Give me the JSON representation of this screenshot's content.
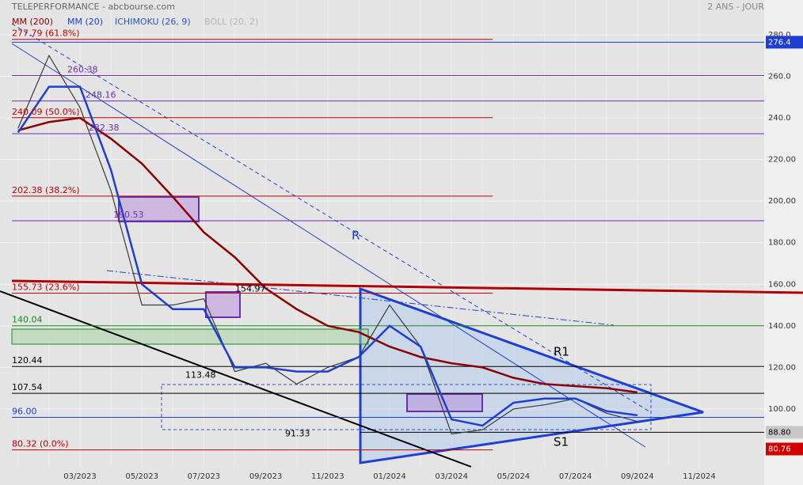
{
  "chart_data": {
    "type": "line",
    "title": "TELEPERFORMANCE - abcbourse.com",
    "subtitle": "2 ANS - JOUR",
    "categories": [
      null,
      null,
      "03/2023",
      null,
      "05/2023",
      null,
      "07/2023",
      null,
      "09/2023",
      null,
      "11/2023",
      null,
      "01/2024",
      null,
      "03/2024",
      null,
      "05/2024",
      null,
      "07/2024",
      null,
      "09/2024",
      null,
      "11/2024"
    ],
    "close": [
      235,
      270,
      245,
      205,
      150,
      150,
      153,
      118,
      122,
      112,
      120,
      125,
      150,
      130,
      88,
      90,
      100,
      102,
      105,
      98,
      94,
      null,
      null
    ],
    "series": [
      {
        "name": "MM (200)",
        "color": "#8b0000",
        "values": [
          234,
          238,
          240,
          230,
          218,
          202,
          185,
          173,
          158,
          148,
          140,
          137,
          130,
          125,
          122,
          120,
          115,
          112,
          111,
          110,
          108,
          null,
          null
        ]
      },
      {
        "name": "MM (20)",
        "color": "#1f3fd1",
        "values": [
          233,
          255,
          255,
          215,
          160,
          148,
          148,
          120,
          120,
          118,
          118,
          125,
          140,
          130,
          95,
          92,
          103,
          105,
          105,
          99,
          97,
          null,
          null
        ]
      }
    ],
    "indicators": [
      {
        "name": "ICHIMOKU (26, 9)",
        "color": "#2b55b8"
      },
      {
        "name": "BOLL (20, 2)",
        "color": "#b4b4b4"
      }
    ],
    "ylim": [
      72.2,
      296.7
    ],
    "yticks": [
      {
        "value": 100,
        "label": "100.00"
      },
      {
        "value": 120,
        "label": "120.00"
      },
      {
        "value": 140,
        "label": "140.00"
      },
      {
        "value": 160,
        "label": "160.00"
      },
      {
        "value": 180,
        "label": "180.00"
      },
      {
        "value": 200,
        "label": "200.00"
      },
      {
        "value": 220,
        "label": "220.00"
      },
      {
        "value": 240,
        "label": "240.0"
      },
      {
        "value": 260,
        "label": "260.0"
      },
      {
        "value": 280,
        "label": "280.0"
      }
    ],
    "levels": [
      {
        "value": 277.79,
        "label": "277.79 (61.8%)",
        "color": "#c00000"
      },
      {
        "value": 240.09,
        "label": "240.09 (50.0%)",
        "color": "#c00000"
      },
      {
        "value": 202.38,
        "label": "202.38 (38.2%)",
        "color": "#c00000"
      },
      {
        "value": 155.73,
        "label": "155.73 (23.6%)",
        "color": "#c00000"
      },
      {
        "value": 80.32,
        "label": "80.32 (0.0%)",
        "color": "#c00000"
      },
      {
        "value": 260.38,
        "color": "#6a2fb0"
      },
      {
        "value": 248.16,
        "color": "#6a2fb0"
      },
      {
        "value": 232.38,
        "color": "#6a2fb0"
      },
      {
        "value": 190.53,
        "color": "#6a2fb0"
      },
      {
        "value": 140.04,
        "color": "#1a8a1a"
      },
      {
        "value": 120.44,
        "color": "#000000"
      },
      {
        "value": 107.54,
        "color": "#000000"
      },
      {
        "value": 96.0,
        "label": "96.00",
        "color": "#1f3fd1"
      }
    ],
    "price_labels": [
      {
        "value": 154.97
      },
      {
        "value": 113.48
      },
      {
        "value": 91.33
      }
    ],
    "badges": [
      {
        "value": 276.4,
        "color": "#1f3fd1"
      },
      {
        "value": 88.8,
        "label": "88.80",
        "color": "#c8c8c8"
      },
      {
        "value": 80.76,
        "color": "#d00000"
      }
    ],
    "annotations": [
      "R",
      "R1",
      "S1"
    ]
  }
}
